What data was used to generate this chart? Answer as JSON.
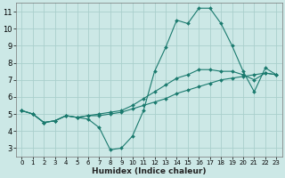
{
  "xlabel": "Humidex (Indice chaleur)",
  "xlim": [
    -0.5,
    23.5
  ],
  "ylim": [
    2.5,
    11.5
  ],
  "yticks": [
    3,
    4,
    5,
    6,
    7,
    8,
    9,
    10,
    11
  ],
  "xticks": [
    0,
    1,
    2,
    3,
    4,
    5,
    6,
    7,
    8,
    9,
    10,
    11,
    12,
    13,
    14,
    15,
    16,
    17,
    18,
    19,
    20,
    21,
    22,
    23
  ],
  "bg_color": "#cce8e6",
  "grid_color": "#aacfcc",
  "line_color": "#1a7a6e",
  "lines": [
    {
      "x": [
        0,
        1,
        2,
        3,
        4,
        5,
        6,
        7,
        8,
        9,
        10,
        11,
        12,
        13,
        14,
        15,
        16,
        17,
        18,
        19,
        20,
        21,
        22,
        23
      ],
      "y": [
        5.2,
        5.0,
        4.5,
        4.6,
        4.9,
        4.8,
        4.7,
        4.2,
        2.9,
        3.0,
        3.7,
        5.2,
        7.5,
        8.9,
        10.5,
        10.3,
        11.2,
        11.2,
        10.3,
        9.0,
        7.5,
        6.3,
        7.7,
        7.3
      ]
    },
    {
      "x": [
        0,
        1,
        2,
        3,
        4,
        5,
        6,
        7,
        8,
        9,
        10,
        11,
        12,
        13,
        14,
        15,
        16,
        17,
        18,
        19,
        20,
        21,
        22,
        23
      ],
      "y": [
        5.2,
        5.0,
        4.5,
        4.6,
        4.9,
        4.8,
        4.9,
        4.9,
        5.0,
        5.1,
        5.3,
        5.5,
        5.7,
        5.9,
        6.2,
        6.4,
        6.6,
        6.8,
        7.0,
        7.1,
        7.2,
        7.3,
        7.4,
        7.3
      ]
    },
    {
      "x": [
        0,
        1,
        2,
        3,
        4,
        5,
        6,
        7,
        8,
        9,
        10,
        11,
        12,
        13,
        14,
        15,
        16,
        17,
        18,
        19,
        20,
        21,
        22,
        23
      ],
      "y": [
        5.2,
        5.0,
        4.5,
        4.6,
        4.9,
        4.8,
        4.9,
        5.0,
        5.1,
        5.2,
        5.5,
        5.9,
        6.3,
        6.7,
        7.1,
        7.3,
        7.6,
        7.6,
        7.5,
        7.5,
        7.3,
        7.0,
        7.4,
        7.3
      ]
    }
  ]
}
